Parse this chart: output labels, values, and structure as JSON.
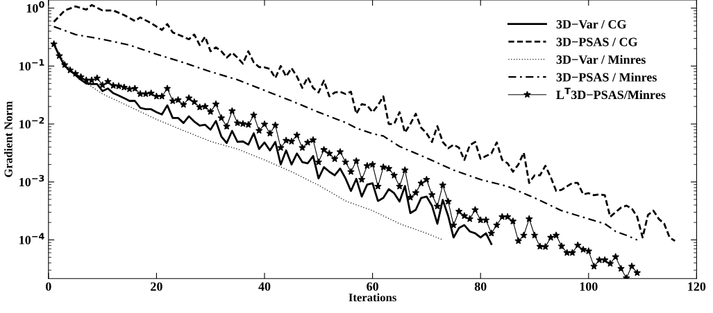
{
  "chart_data": {
    "type": "line",
    "xlabel": "Iterations",
    "ylabel": "Gradient Norm",
    "log": "y",
    "xlim": [
      0,
      120
    ],
    "xticks": [
      0,
      20,
      40,
      60,
      80,
      100,
      120
    ],
    "ylim": [
      2.15e-05,
      1.38
    ],
    "yticks": [
      {
        "value": 0.0001,
        "label": "10$^{−4}$"
      },
      {
        "value": 0.001,
        "label": "10$^{−3}$"
      },
      {
        "value": 0.01,
        "label": "10$^{−2}$"
      },
      {
        "value": 0.1,
        "label": "10$^{−1}$"
      },
      {
        "value": 1,
        "label": "10$^{0}$"
      }
    ],
    "grid": false,
    "legend": "top right",
    "series": [
      {
        "name": "3D−Var / CG",
        "color": "#000000",
        "line_style": "solid",
        "marker": "none",
        "x": [
          1,
          2,
          3,
          4,
          5,
          6,
          7,
          8,
          9,
          10,
          11,
          12,
          13,
          14,
          15,
          16,
          17,
          18,
          19,
          20,
          21,
          22,
          23,
          24,
          25,
          26,
          27,
          28,
          29,
          30,
          31,
          32,
          33,
          34,
          35,
          36,
          37,
          38,
          39,
          40,
          41,
          42,
          43,
          44,
          45,
          46,
          47,
          48,
          49,
          50,
          51,
          52,
          53,
          54,
          55,
          56,
          57,
          58,
          59,
          60,
          61,
          62,
          63,
          64,
          65,
          66,
          67,
          68,
          69,
          70,
          71,
          72,
          73,
          74,
          75,
          76,
          77,
          78,
          79,
          80,
          81,
          82
        ],
        "values": [
          0.24,
          0.15,
          0.1,
          0.084,
          0.07,
          0.058,
          0.05,
          0.049,
          0.049,
          0.037,
          0.041,
          0.034,
          0.031,
          0.028,
          0.025,
          0.025,
          0.019,
          0.018,
          0.018,
          0.016,
          0.0146,
          0.021,
          0.0127,
          0.0127,
          0.0104,
          0.0136,
          0.011,
          0.0094,
          0.0097,
          0.008,
          0.0113,
          0.0061,
          0.0047,
          0.0076,
          0.0049,
          0.005,
          0.0044,
          0.0069,
          0.0037,
          0.0048,
          0.0035,
          0.0049,
          0.002,
          0.0035,
          0.002,
          0.0031,
          0.0022,
          0.0021,
          0.0028,
          0.00115,
          0.0018,
          0.0015,
          0.0013,
          0.0017,
          0.00115,
          0.0007,
          0.00113,
          0.00056,
          0.0009,
          0.00095,
          0.00047,
          0.00053,
          0.00075,
          0.00064,
          0.00046,
          0.00085,
          0.00029,
          0.00033,
          0.00053,
          0.00056,
          0.00039,
          0.00019,
          0.00049,
          0.00026,
          0.00011,
          0.00016,
          0.00018,
          0.00014,
          0.00013,
          0.00011,
          0.00013,
          8.5e-05
        ]
      },
      {
        "name": "3D−PSAS / CG",
        "color": "#000000",
        "line_style": "dashed",
        "marker": "none",
        "x": [
          1,
          3,
          5,
          7,
          8,
          10,
          12,
          14,
          16,
          17,
          19,
          21,
          22,
          23,
          25,
          26,
          27,
          28,
          29,
          30,
          31,
          32,
          33,
          34,
          35,
          36,
          37,
          38,
          39,
          40,
          41,
          42,
          43,
          44,
          45,
          46,
          47,
          48,
          49,
          50,
          51,
          52,
          53,
          54,
          55,
          56,
          57,
          58,
          59,
          60,
          61,
          62,
          63,
          64,
          65,
          66,
          67,
          68,
          69,
          70,
          71,
          72,
          73,
          74,
          75,
          76,
          77,
          78,
          79,
          80,
          81,
          82,
          83,
          84,
          85,
          86,
          87,
          88,
          89,
          90,
          91,
          92,
          93,
          94,
          95,
          96,
          97,
          98,
          99,
          100,
          101,
          102,
          103,
          104,
          105,
          106,
          107,
          108,
          109,
          110,
          111,
          112,
          113,
          114,
          115,
          116
        ],
        "values": [
          0.58,
          0.91,
          1.07,
          0.94,
          1.13,
          0.91,
          0.91,
          0.76,
          0.6,
          0.69,
          0.55,
          0.42,
          0.53,
          0.38,
          0.32,
          0.29,
          0.35,
          0.23,
          0.32,
          0.18,
          0.21,
          0.18,
          0.14,
          0.17,
          0.14,
          0.11,
          0.18,
          0.116,
          0.096,
          0.095,
          0.089,
          0.062,
          0.1,
          0.066,
          0.092,
          0.066,
          0.042,
          0.064,
          0.042,
          0.035,
          0.056,
          0.03,
          0.035,
          0.036,
          0.033,
          0.036,
          0.015,
          0.022,
          0.021,
          0.016,
          0.021,
          0.03,
          0.01,
          0.01,
          0.016,
          0.0071,
          0.01,
          0.015,
          0.0086,
          0.0069,
          0.0049,
          0.0092,
          0.0049,
          0.0038,
          0.0044,
          0.0039,
          0.0024,
          0.0043,
          0.0049,
          0.0025,
          0.0028,
          0.0031,
          0.0048,
          0.0024,
          0.0021,
          0.0015,
          0.002,
          0.0032,
          0.00096,
          0.0013,
          0.0013,
          0.0019,
          0.0012,
          0.0007,
          0.00073,
          0.00084,
          0.00096,
          0.00096,
          0.00061,
          0.00064,
          0.00059,
          0.00061,
          0.00059,
          0.00025,
          0.0003,
          0.00036,
          0.00039,
          0.00035,
          0.00025,
          0.00011,
          0.00027,
          0.00032,
          0.00023,
          0.00019,
          0.00011,
          9.6e-05
        ]
      },
      {
        "name": "3D−Var / Minres",
        "color": "#000000",
        "line_style": "dotted",
        "marker": "none",
        "x": [
          1,
          3,
          5,
          10,
          15,
          20,
          25,
          30,
          35,
          40,
          45,
          50,
          55,
          60,
          65,
          70,
          73
        ],
        "values": [
          0.24,
          0.115,
          0.068,
          0.033,
          0.02,
          0.012,
          0.0077,
          0.005,
          0.0037,
          0.0024,
          0.0015,
          0.00088,
          0.00047,
          0.00032,
          0.00019,
          0.00013,
          0.0001
        ]
      },
      {
        "name": "3D−PSAS / Minres",
        "color": "#000000",
        "line_style": "dashdot",
        "marker": "none",
        "x": [
          1,
          5,
          10,
          15,
          20,
          25,
          30,
          35,
          40,
          45,
          50,
          55,
          57,
          60,
          62,
          65,
          70,
          75,
          80,
          85,
          90,
          95,
          100,
          103,
          105,
          107,
          109
        ],
        "values": [
          0.48,
          0.35,
          0.29,
          0.23,
          0.16,
          0.115,
          0.08,
          0.058,
          0.038,
          0.025,
          0.016,
          0.0106,
          0.0085,
          0.0068,
          0.0062,
          0.0041,
          0.0026,
          0.0016,
          0.0011,
          0.00084,
          0.00053,
          0.00032,
          0.00023,
          0.00019,
          0.00014,
          0.00012,
          0.0001
        ]
      },
      {
        "name": "L$^{T}$3D−PSAS/Minres",
        "color": "#000000",
        "line_style": "solid",
        "marker": "star",
        "x": [
          1,
          2,
          3,
          4,
          5,
          6,
          7,
          8,
          9,
          10,
          11,
          12,
          13,
          14,
          15,
          16,
          17,
          18,
          19,
          20,
          21,
          22,
          23,
          24,
          25,
          26,
          27,
          28,
          29,
          30,
          31,
          32,
          33,
          34,
          35,
          36,
          37,
          38,
          39,
          40,
          41,
          42,
          43,
          44,
          45,
          46,
          47,
          48,
          49,
          50,
          51,
          52,
          53,
          54,
          55,
          56,
          57,
          58,
          59,
          60,
          61,
          62,
          63,
          64,
          65,
          66,
          67,
          68,
          69,
          70,
          71,
          72,
          73,
          74,
          75,
          76,
          77,
          78,
          79,
          80,
          81,
          82,
          83,
          84,
          85,
          86,
          87,
          88,
          89,
          90,
          91,
          92,
          93,
          94,
          95,
          96,
          97,
          98,
          99,
          100,
          101,
          102,
          103,
          104,
          105,
          106,
          107,
          108,
          109
        ],
        "values": [
          0.24,
          0.15,
          0.105,
          0.085,
          0.074,
          0.065,
          0.057,
          0.057,
          0.062,
          0.047,
          0.054,
          0.046,
          0.045,
          0.043,
          0.04,
          0.041,
          0.033,
          0.033,
          0.034,
          0.03,
          0.03,
          0.041,
          0.025,
          0.026,
          0.0216,
          0.028,
          0.024,
          0.0195,
          0.02,
          0.0163,
          0.022,
          0.0127,
          0.0091,
          0.0168,
          0.0104,
          0.0101,
          0.0097,
          0.0142,
          0.0077,
          0.0099,
          0.0069,
          0.0095,
          0.0039,
          0.0052,
          0.005,
          0.0064,
          0.0039,
          0.0048,
          0.0053,
          0.0022,
          0.0036,
          0.0031,
          0.0025,
          0.0033,
          0.0022,
          0.0015,
          0.0023,
          0.0011,
          0.0019,
          0.002,
          0.00084,
          0.0018,
          0.0017,
          0.0013,
          0.00084,
          0.0016,
          0.00054,
          0.00065,
          0.00095,
          0.0011,
          0.0006,
          0.00038,
          0.00088,
          0.00046,
          0.00018,
          0.00031,
          0.00026,
          0.00023,
          0.00033,
          0.00022,
          0.00022,
          0.00013,
          0.00018,
          0.00025,
          0.00025,
          0.00021,
          9.6e-05,
          0.00012,
          0.00023,
          0.00012,
          7.7e-05,
          7.6e-05,
          0.00011,
          0.00012,
          7.8e-05,
          6e-05,
          6e-05,
          8.1e-05,
          6.8e-05,
          6.4e-05,
          3.5e-05,
          4.5e-05,
          4.5e-05,
          3.9e-05,
          5.1e-05,
          3.2e-05,
          2.2e-05,
          3.5e-05,
          2.7e-05
        ]
      }
    ]
  }
}
